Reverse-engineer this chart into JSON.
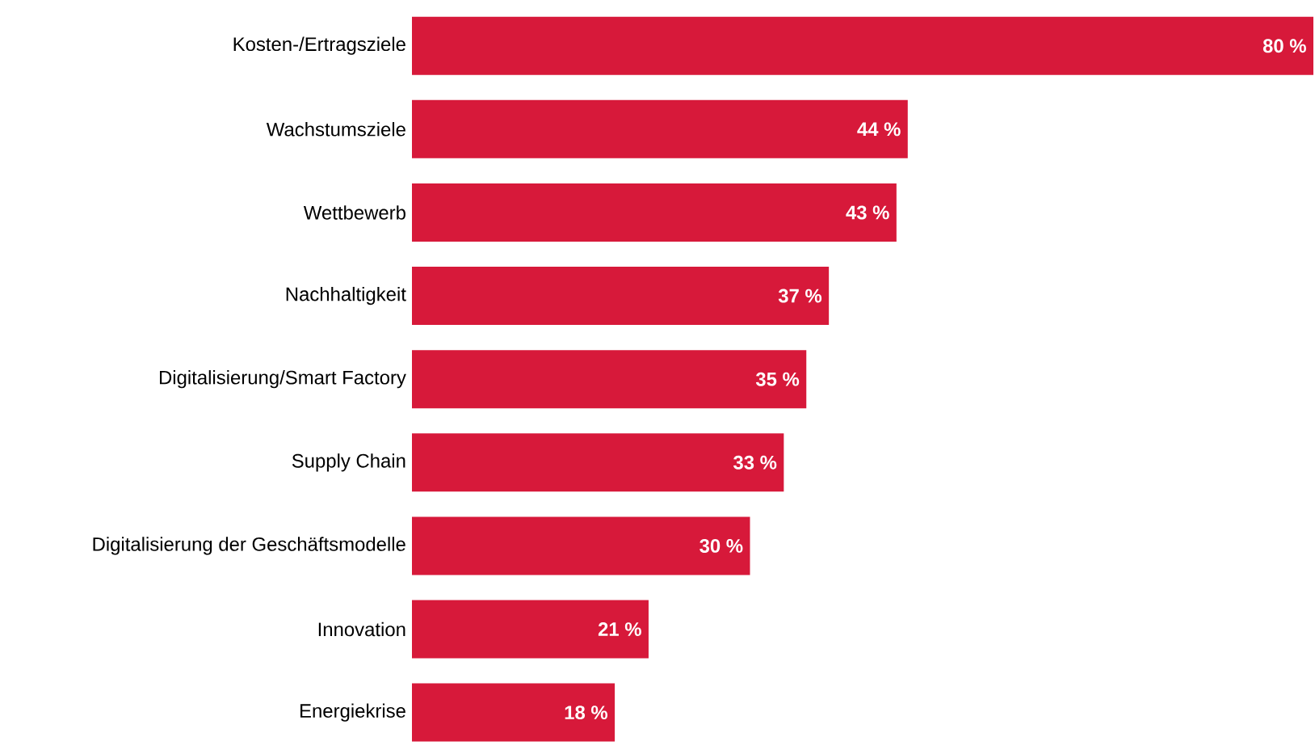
{
  "chart_data": {
    "type": "bar",
    "orientation": "horizontal",
    "categories": [
      "Kosten-/Ertragsziele",
      "Wachstumsziele",
      "Wettbewerb",
      "Nachhaltigkeit",
      "Digitalisierung/Smart Factory",
      "Supply Chain",
      "Digitalisierung der Geschäftsmodelle",
      "Innovation",
      "Energiekrise"
    ],
    "values": [
      80,
      44,
      43,
      37,
      35,
      33,
      30,
      21,
      18
    ],
    "value_labels": [
      "80 %",
      "44 %",
      "43 %",
      "37 %",
      "35 %",
      "33 %",
      "30 %",
      "21 %",
      "18 %"
    ],
    "color": "#d7193a"
  }
}
